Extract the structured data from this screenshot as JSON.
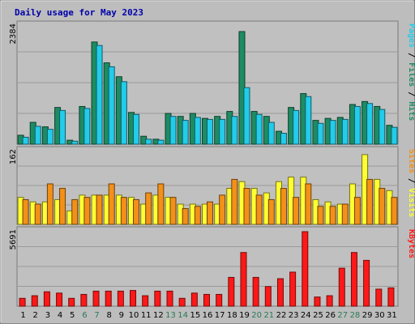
{
  "chart_data": {
    "type": "bar",
    "title": "Daily usage for May 2023",
    "categories": [
      "1",
      "2",
      "3",
      "4",
      "5",
      "6",
      "7",
      "8",
      "9",
      "10",
      "11",
      "12",
      "13",
      "14",
      "15",
      "16",
      "17",
      "18",
      "19",
      "20",
      "21",
      "22",
      "23",
      "24",
      "25",
      "26",
      "27",
      "28",
      "29",
      "30",
      "31"
    ],
    "weekend_days": [
      "6",
      "7",
      "13",
      "14",
      "20",
      "21",
      "27",
      "28"
    ],
    "panels": [
      {
        "id": "pages-files-hits",
        "max_label": "2384",
        "ymax": 2384,
        "side_label": [
          "Pages",
          "Files",
          "Hits"
        ],
        "series": [
          {
            "name": "Hits",
            "color": "#1e8c62",
            "values": [
              180,
              440,
              350,
              740,
              80,
              760,
              2060,
              1640,
              1360,
              640,
              160,
              100,
              620,
              560,
              620,
              520,
              560,
              660,
              2270,
              660,
              560,
              260,
              740,
              1020,
              480,
              520,
              540,
              800,
              860,
              760,
              380
            ]
          },
          {
            "name": "Files",
            "color": "#22ccea",
            "values": [
              140,
              360,
              300,
              680,
              60,
              720,
              1990,
              1560,
              1260,
              600,
              100,
              80,
              560,
              480,
              540,
              500,
              500,
              560,
              1140,
              600,
              440,
              220,
              680,
              960,
              420,
              480,
              500,
              760,
              820,
              700,
              340
            ]
          }
        ]
      },
      {
        "id": "visits-sites",
        "max_label": "162",
        "ymax": 162,
        "side_label": [
          "Sites",
          "Visits"
        ],
        "series": [
          {
            "name": "Visits",
            "color": "#ffff33",
            "values": [
              60,
              50,
              50,
              55,
              30,
              65,
              65,
              65,
              65,
              60,
              45,
              65,
              60,
              45,
              45,
              45,
              45,
              80,
              95,
              80,
              70,
              95,
              105,
              105,
              55,
              50,
              45,
              90,
              155,
              100,
              75
            ]
          },
          {
            "name": "Sites",
            "color": "#f39018",
            "values": [
              55,
              45,
              90,
              80,
              55,
              60,
              65,
              90,
              60,
              55,
              70,
              90,
              60,
              35,
              40,
              50,
              65,
              100,
              80,
              65,
              55,
              80,
              60,
              90,
              40,
              40,
              45,
              60,
              100,
              80,
              60
            ]
          }
        ]
      },
      {
        "id": "kbytes",
        "max_label": "5691",
        "ymax": 5691,
        "side_label": [
          "KBytes"
        ],
        "series": [
          {
            "name": "KBytes",
            "color": "#ff1818",
            "values": [
              600,
              800,
              1100,
              1000,
              600,
              900,
              1150,
              1150,
              1150,
              1200,
              800,
              1150,
              1150,
              600,
              1000,
              900,
              900,
              2200,
              4100,
              2200,
              1500,
              2100,
              2600,
              5691,
              700,
              800,
              2900,
              4100,
              3500,
              1300,
              1400
            ]
          }
        ]
      }
    ]
  }
}
